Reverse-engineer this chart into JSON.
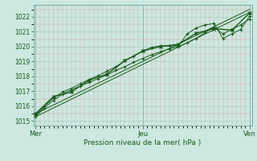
{
  "xlabel": "Pression niveau de la mer( hPa )",
  "bg_color": "#cce8e0",
  "grid_color_major": "#aaccc4",
  "grid_color_minor": "#bbddd6",
  "line_color": "#1a5c1a",
  "ylim": [
    1014.7,
    1022.8
  ],
  "yticks": [
    1015,
    1016,
    1017,
    1018,
    1019,
    1020,
    1021,
    1022
  ],
  "day_labels": [
    "Mer",
    "Jeu",
    "Ven"
  ],
  "day_positions": [
    0,
    48,
    96
  ],
  "n_points": 97,
  "line3_x": [
    0,
    4,
    8,
    12,
    16,
    20,
    24,
    28,
    32,
    36,
    40,
    44,
    48,
    52,
    56,
    60,
    64,
    68,
    72,
    76,
    80,
    84,
    88,
    92,
    96
  ],
  "line3_y": [
    1015.4,
    1016.0,
    1016.55,
    1016.95,
    1017.2,
    1017.5,
    1017.8,
    1018.05,
    1018.35,
    1018.65,
    1019.05,
    1019.35,
    1019.7,
    1019.95,
    1020.05,
    1020.05,
    1020.05,
    1020.85,
    1021.25,
    1021.45,
    1021.55,
    1020.55,
    1020.85,
    1021.15,
    1022.05
  ],
  "line4_x": [
    0,
    4,
    8,
    12,
    16,
    20,
    24,
    28,
    32,
    36,
    40,
    44,
    48,
    52,
    56,
    60,
    64,
    68,
    72,
    76,
    80,
    84,
    88,
    92,
    96
  ],
  "line4_y": [
    1015.3,
    1015.9,
    1016.4,
    1016.8,
    1017.1,
    1017.35,
    1017.6,
    1017.85,
    1018.1,
    1018.4,
    1018.65,
    1018.95,
    1019.2,
    1019.45,
    1019.65,
    1019.85,
    1020.0,
    1020.25,
    1020.55,
    1020.95,
    1021.3,
    1020.85,
    1021.15,
    1021.45,
    1021.85
  ],
  "line5_x": [
    0,
    8,
    16,
    24,
    32,
    40,
    48,
    56,
    64,
    72,
    80,
    88,
    96
  ],
  "line5_y": [
    1015.5,
    1016.65,
    1016.95,
    1017.75,
    1018.15,
    1019.05,
    1019.7,
    1020.0,
    1020.15,
    1020.9,
    1021.2,
    1021.1,
    1022.25
  ],
  "trend1": [
    1015.3,
    1022.3
  ],
  "trend2": [
    1015.5,
    1022.5
  ]
}
